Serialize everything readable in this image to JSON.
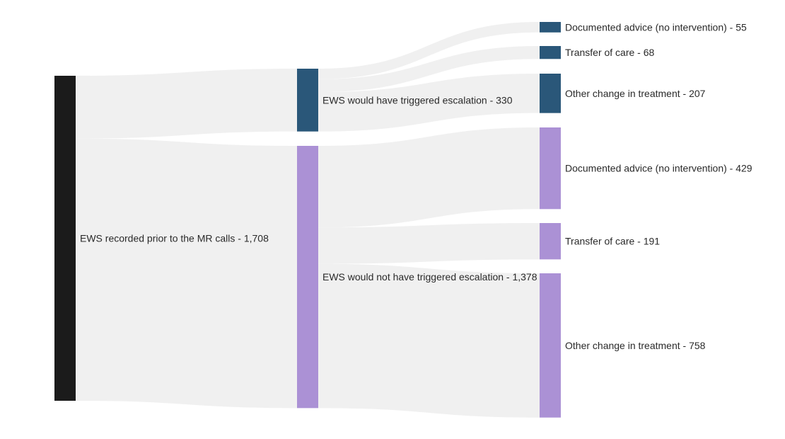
{
  "chart_data": {
    "type": "sankey",
    "colors": {
      "root": "#1b1b1b",
      "triggered": "#2a5779",
      "not_triggered": "#ab91d5",
      "link": "#f0f0f0"
    },
    "nodes": [
      {
        "id": "root",
        "label": "EWS recorded prior to the MR calls - 1,708",
        "value": 1708,
        "column": 0,
        "color": "#1b1b1b"
      },
      {
        "id": "trig",
        "label": "EWS would have triggered escalation - 330",
        "value": 330,
        "column": 1,
        "color": "#2a5779"
      },
      {
        "id": "notrig",
        "label": "EWS would not have triggered escalation - 1,378",
        "value": 1378,
        "column": 1,
        "color": "#ab91d5"
      },
      {
        "id": "t_doc",
        "label": "Documented advice (no intervention) - 55",
        "value": 55,
        "column": 2,
        "color": "#2a5779"
      },
      {
        "id": "t_tra",
        "label": "Transfer of care - 68",
        "value": 68,
        "column": 2,
        "color": "#2a5779"
      },
      {
        "id": "t_oth",
        "label": "Other change in treatment - 207",
        "value": 207,
        "column": 2,
        "color": "#2a5779"
      },
      {
        "id": "n_doc",
        "label": "Documented advice (no intervention) - 429",
        "value": 429,
        "column": 2,
        "color": "#ab91d5"
      },
      {
        "id": "n_tra",
        "label": "Transfer of care - 191",
        "value": 191,
        "column": 2,
        "color": "#ab91d5"
      },
      {
        "id": "n_oth",
        "label": "Other change in treatment - 758",
        "value": 758,
        "column": 2,
        "color": "#ab91d5"
      }
    ],
    "links": [
      {
        "source": "root",
        "target": "trig",
        "value": 330
      },
      {
        "source": "root",
        "target": "notrig",
        "value": 1378
      },
      {
        "source": "trig",
        "target": "t_doc",
        "value": 55
      },
      {
        "source": "trig",
        "target": "t_tra",
        "value": 68
      },
      {
        "source": "trig",
        "target": "t_oth",
        "value": 207
      },
      {
        "source": "notrig",
        "target": "n_doc",
        "value": 429
      },
      {
        "source": "notrig",
        "target": "n_tra",
        "value": 191
      },
      {
        "source": "notrig",
        "target": "n_oth",
        "value": 758
      }
    ]
  }
}
